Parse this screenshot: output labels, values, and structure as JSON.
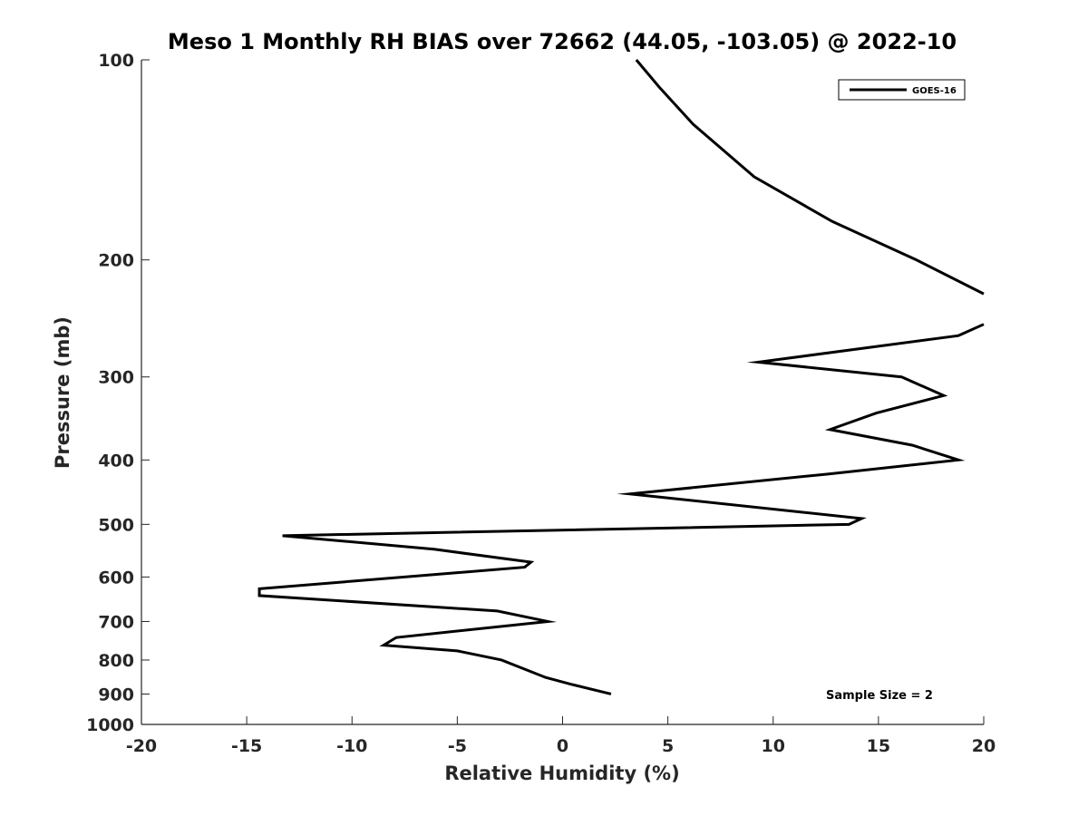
{
  "chart_data": {
    "type": "line",
    "title": "Meso 1 Monthly RH BIAS over 72662 (44.05, -103.05) @ 2022-10",
    "xlabel": "Relative Humidity (%)",
    "ylabel": "Pressure (mb)",
    "xlim": [
      -20,
      20
    ],
    "ylim": [
      100,
      1000
    ],
    "y_scale": "log",
    "y_reversed": true,
    "grid": false,
    "x_ticks": [
      -20,
      -15,
      -10,
      -5,
      0,
      5,
      10,
      15,
      20
    ],
    "x_tick_labels": [
      "-20",
      "-15",
      "-10",
      "-5",
      "0",
      "5",
      "10",
      "15",
      "20"
    ],
    "y_ticks": [
      100,
      200,
      300,
      400,
      500,
      600,
      700,
      800,
      900,
      1000
    ],
    "y_tick_labels": [
      "100",
      "200",
      "300",
      "400",
      "500",
      "600",
      "700",
      "800",
      "900",
      "1000"
    ],
    "legend_position": "top-right",
    "series": [
      {
        "name": "GOES-16",
        "color": "#000000",
        "points": [
          {
            "x": 20.0,
            "y": 225
          },
          {
            "x": 16.8,
            "y": 200
          },
          {
            "x": 12.8,
            "y": 175
          },
          {
            "x": 9.1,
            "y": 150
          },
          {
            "x": 6.2,
            "y": 125
          },
          {
            "x": 4.6,
            "y": 110
          },
          {
            "x": 3.5,
            "y": 100
          }
        ]
      },
      {
        "name": "",
        "color": "#000000",
        "points": [
          {
            "x": 20.0,
            "y": 250
          },
          {
            "x": 18.8,
            "y": 260
          },
          {
            "x": 9.3,
            "y": 285
          },
          {
            "x": 16.1,
            "y": 300
          },
          {
            "x": 18.1,
            "y": 320
          },
          {
            "x": 14.9,
            "y": 340
          },
          {
            "x": 12.7,
            "y": 360
          },
          {
            "x": 16.6,
            "y": 380
          },
          {
            "x": 18.8,
            "y": 400
          },
          {
            "x": 12.6,
            "y": 420
          },
          {
            "x": 3.2,
            "y": 450
          },
          {
            "x": 14.2,
            "y": 490
          },
          {
            "x": 13.6,
            "y": 500
          },
          {
            "x": -13.3,
            "y": 520
          },
          {
            "x": -6.1,
            "y": 545
          },
          {
            "x": -1.5,
            "y": 570
          },
          {
            "x": -1.8,
            "y": 580
          },
          {
            "x": -14.4,
            "y": 625
          },
          {
            "x": -14.4,
            "y": 640
          },
          {
            "x": -3.1,
            "y": 675
          },
          {
            "x": -0.7,
            "y": 700
          },
          {
            "x": -7.9,
            "y": 740
          },
          {
            "x": -8.5,
            "y": 760
          },
          {
            "x": -5.0,
            "y": 775
          },
          {
            "x": -2.9,
            "y": 800
          },
          {
            "x": -0.8,
            "y": 850
          },
          {
            "x": 0.4,
            "y": 870
          },
          {
            "x": 2.3,
            "y": 900
          }
        ]
      }
    ],
    "annotations": [
      {
        "text": "Sample Size = 2",
        "position": "bottom-right"
      }
    ]
  }
}
